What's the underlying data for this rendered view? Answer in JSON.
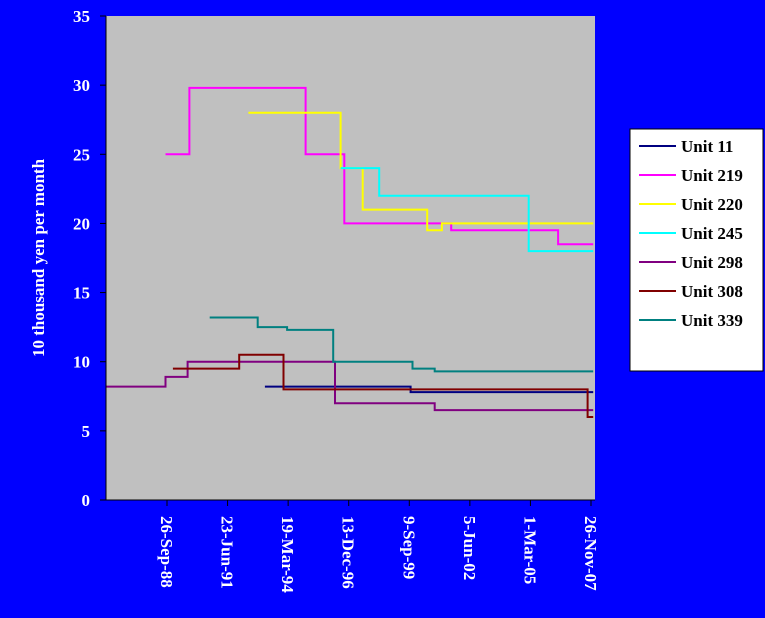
{
  "chart_data": {
    "type": "line",
    "step": true,
    "ylabel": "10 thousand yen per month",
    "ylim": [
      0,
      35
    ],
    "yticks": [
      0,
      5,
      10,
      15,
      20,
      25,
      30,
      35
    ],
    "x_tick_labels": [
      "26-Sep-88",
      "23-Jun-91",
      "19-Mar-94",
      "13-Dec-96",
      "9-Sep-99",
      "5-Jun-02",
      "1-Mar-05",
      "26-Nov-07"
    ],
    "xlim": [
      "1986-01-01",
      "2008-01-01"
    ],
    "plot_background": "#C0C0C0",
    "background": "#0000FF",
    "grid": false,
    "legend_position": "right",
    "series": [
      {
        "name": "Unit 11",
        "color": "#000080",
        "points": [
          [
            "1993-03-01",
            8.2
          ],
          [
            "1999-09-01",
            8.2
          ],
          [
            "1999-10-01",
            7.8
          ],
          [
            "2008-01-01",
            7.8
          ]
        ]
      },
      {
        "name": "Unit 219",
        "color": "#FF00FF",
        "points": [
          [
            "1988-09-01",
            25
          ],
          [
            "1989-10-01",
            29.8
          ],
          [
            "1995-01-01",
            25
          ],
          [
            "1996-10-01",
            20
          ],
          [
            "2001-08-01",
            19.5
          ],
          [
            "2006-06-01",
            18.5
          ],
          [
            "2008-01-01",
            18.5
          ]
        ]
      },
      {
        "name": "Unit 220",
        "color": "#FFFF00",
        "points": [
          [
            "1992-06-01",
            28
          ],
          [
            "1996-08-01",
            24
          ],
          [
            "1997-08-01",
            21
          ],
          [
            "2000-07-01",
            19.5
          ],
          [
            "2001-03-01",
            20
          ],
          [
            "2008-01-01",
            20
          ]
        ]
      },
      {
        "name": "Unit 245",
        "color": "#00FFFF",
        "points": [
          [
            "1996-08-01",
            24
          ],
          [
            "1998-05-01",
            22
          ],
          [
            "2005-02-01",
            18
          ],
          [
            "2008-01-01",
            18
          ]
        ]
      },
      {
        "name": "Unit 298",
        "color": "#800080",
        "points": [
          [
            "1986-01-01",
            8.2
          ],
          [
            "1988-09-01",
            8.9
          ],
          [
            "1989-09-01",
            10
          ],
          [
            "1996-05-01",
            7
          ],
          [
            "2000-11-01",
            6.5
          ],
          [
            "2008-01-01",
            6.5
          ]
        ]
      },
      {
        "name": "Unit 308",
        "color": "#800000",
        "points": [
          [
            "1989-01-01",
            9.5
          ],
          [
            "1992-01-01",
            10.5
          ],
          [
            "1994-01-01",
            8
          ],
          [
            "2007-10-01",
            6
          ],
          [
            "2008-01-01",
            6
          ]
        ]
      },
      {
        "name": "Unit 339",
        "color": "#008080",
        "points": [
          [
            "1990-09-01",
            13.2
          ],
          [
            "1992-11-01",
            12.5
          ],
          [
            "1994-03-01",
            12.3
          ],
          [
            "1996-04-01",
            10
          ],
          [
            "1999-11-01",
            9.5
          ],
          [
            "2000-11-01",
            9.3
          ],
          [
            "2008-01-01",
            9.3
          ]
        ]
      }
    ]
  }
}
